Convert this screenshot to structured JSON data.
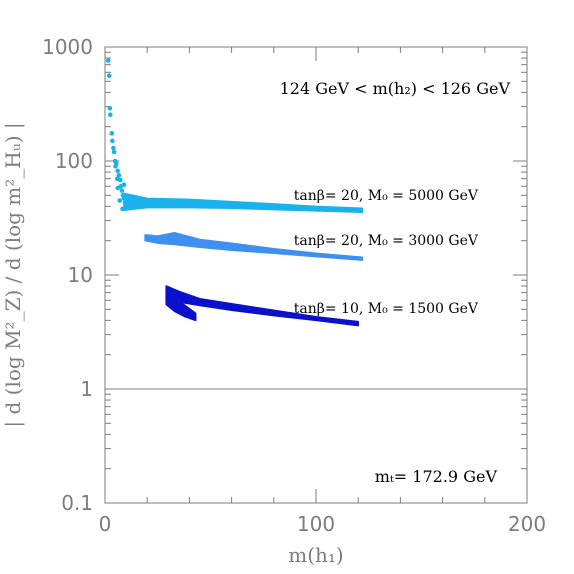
{
  "chart_data": {
    "type": "scatter",
    "xlabel": "m(h₁)",
    "ylabel": "| d (log M²_Z) / d (log m²_Hᵤ) |",
    "xlim": [
      0,
      200
    ],
    "ylim": [
      0.1,
      1000
    ],
    "y_scale": "log",
    "x_ticks": [
      "0",
      "100",
      "200"
    ],
    "y_ticks": [
      "0.1",
      "1",
      "10",
      "100",
      "1000"
    ],
    "reference_line_y": 1,
    "grid": false,
    "annotations": {
      "mass_window": "124 GeV < m(h₂) < 126 GeV",
      "top_mass": "mₜ= 172.9 GeV"
    },
    "series": [
      {
        "name": "tanβ= 20, M₀ = 5000 GeV",
        "color": "#1ab2ec",
        "band": {
          "x": [
            9,
            20,
            40,
            60,
            80,
            100,
            122
          ],
          "y_low": [
            37,
            39,
            39,
            38.5,
            37.5,
            36.5,
            35.5
          ],
          "y_high": [
            52,
            47,
            46,
            44,
            42,
            40,
            38.5
          ]
        },
        "points": [
          {
            "x": 1.5,
            "y": 760
          },
          {
            "x": 2.0,
            "y": 560
          },
          {
            "x": 2.3,
            "y": 290
          },
          {
            "x": 2.5,
            "y": 255
          },
          {
            "x": 3.2,
            "y": 175
          },
          {
            "x": 3.5,
            "y": 150
          },
          {
            "x": 4.0,
            "y": 130
          },
          {
            "x": 4.3,
            "y": 120
          },
          {
            "x": 4.8,
            "y": 100
          },
          {
            "x": 5.0,
            "y": 90
          },
          {
            "x": 5.4,
            "y": 95
          },
          {
            "x": 6.0,
            "y": 82
          },
          {
            "x": 6.6,
            "y": 75
          },
          {
            "x": 7.2,
            "y": 68
          },
          {
            "x": 7.5,
            "y": 60
          },
          {
            "x": 8.0,
            "y": 55
          },
          {
            "x": 8.5,
            "y": 50
          },
          {
            "x": 9.0,
            "y": 47
          },
          {
            "x": 9.5,
            "y": 43
          },
          {
            "x": 10.0,
            "y": 40
          },
          {
            "x": 8.3,
            "y": 38
          },
          {
            "x": 6.0,
            "y": 58
          },
          {
            "x": 7.0,
            "y": 45
          },
          {
            "x": 5.8,
            "y": 70
          },
          {
            "x": 11.0,
            "y": 44
          },
          {
            "x": 12.0,
            "y": 48
          },
          {
            "x": 9.0,
            "y": 62
          }
        ]
      },
      {
        "name": "tanβ= 20, M₀ = 3000 GeV",
        "color": "#3e8ff0",
        "band": {
          "x": [
            19,
            25,
            33,
            45,
            60,
            80,
            100,
            122
          ],
          "y_low": [
            20,
            19,
            18.5,
            17.5,
            16.5,
            15.5,
            14.5,
            13.5
          ],
          "y_high": [
            22.5,
            22,
            23.5,
            20.5,
            19,
            17,
            15.5,
            14.3
          ]
        },
        "points": []
      },
      {
        "name": "tanβ= 10, M₀ = 1500 GeV",
        "color": "#0a10cc",
        "band": {
          "x": [
            29,
            35,
            45,
            60,
            80,
            100,
            120
          ],
          "y_low": [
            6.0,
            5.8,
            5.4,
            4.9,
            4.4,
            4.0,
            3.6
          ],
          "y_high": [
            8.0,
            7.2,
            6.2,
            5.6,
            4.9,
            4.3,
            3.9
          ]
        },
        "extra_band": {
          "x": [
            29,
            33,
            38,
            43
          ],
          "y_low": [
            5.5,
            4.8,
            4.3,
            4.0
          ],
          "y_high": [
            7.2,
            6.2,
            5.4,
            4.6
          ]
        },
        "points": []
      }
    ]
  }
}
